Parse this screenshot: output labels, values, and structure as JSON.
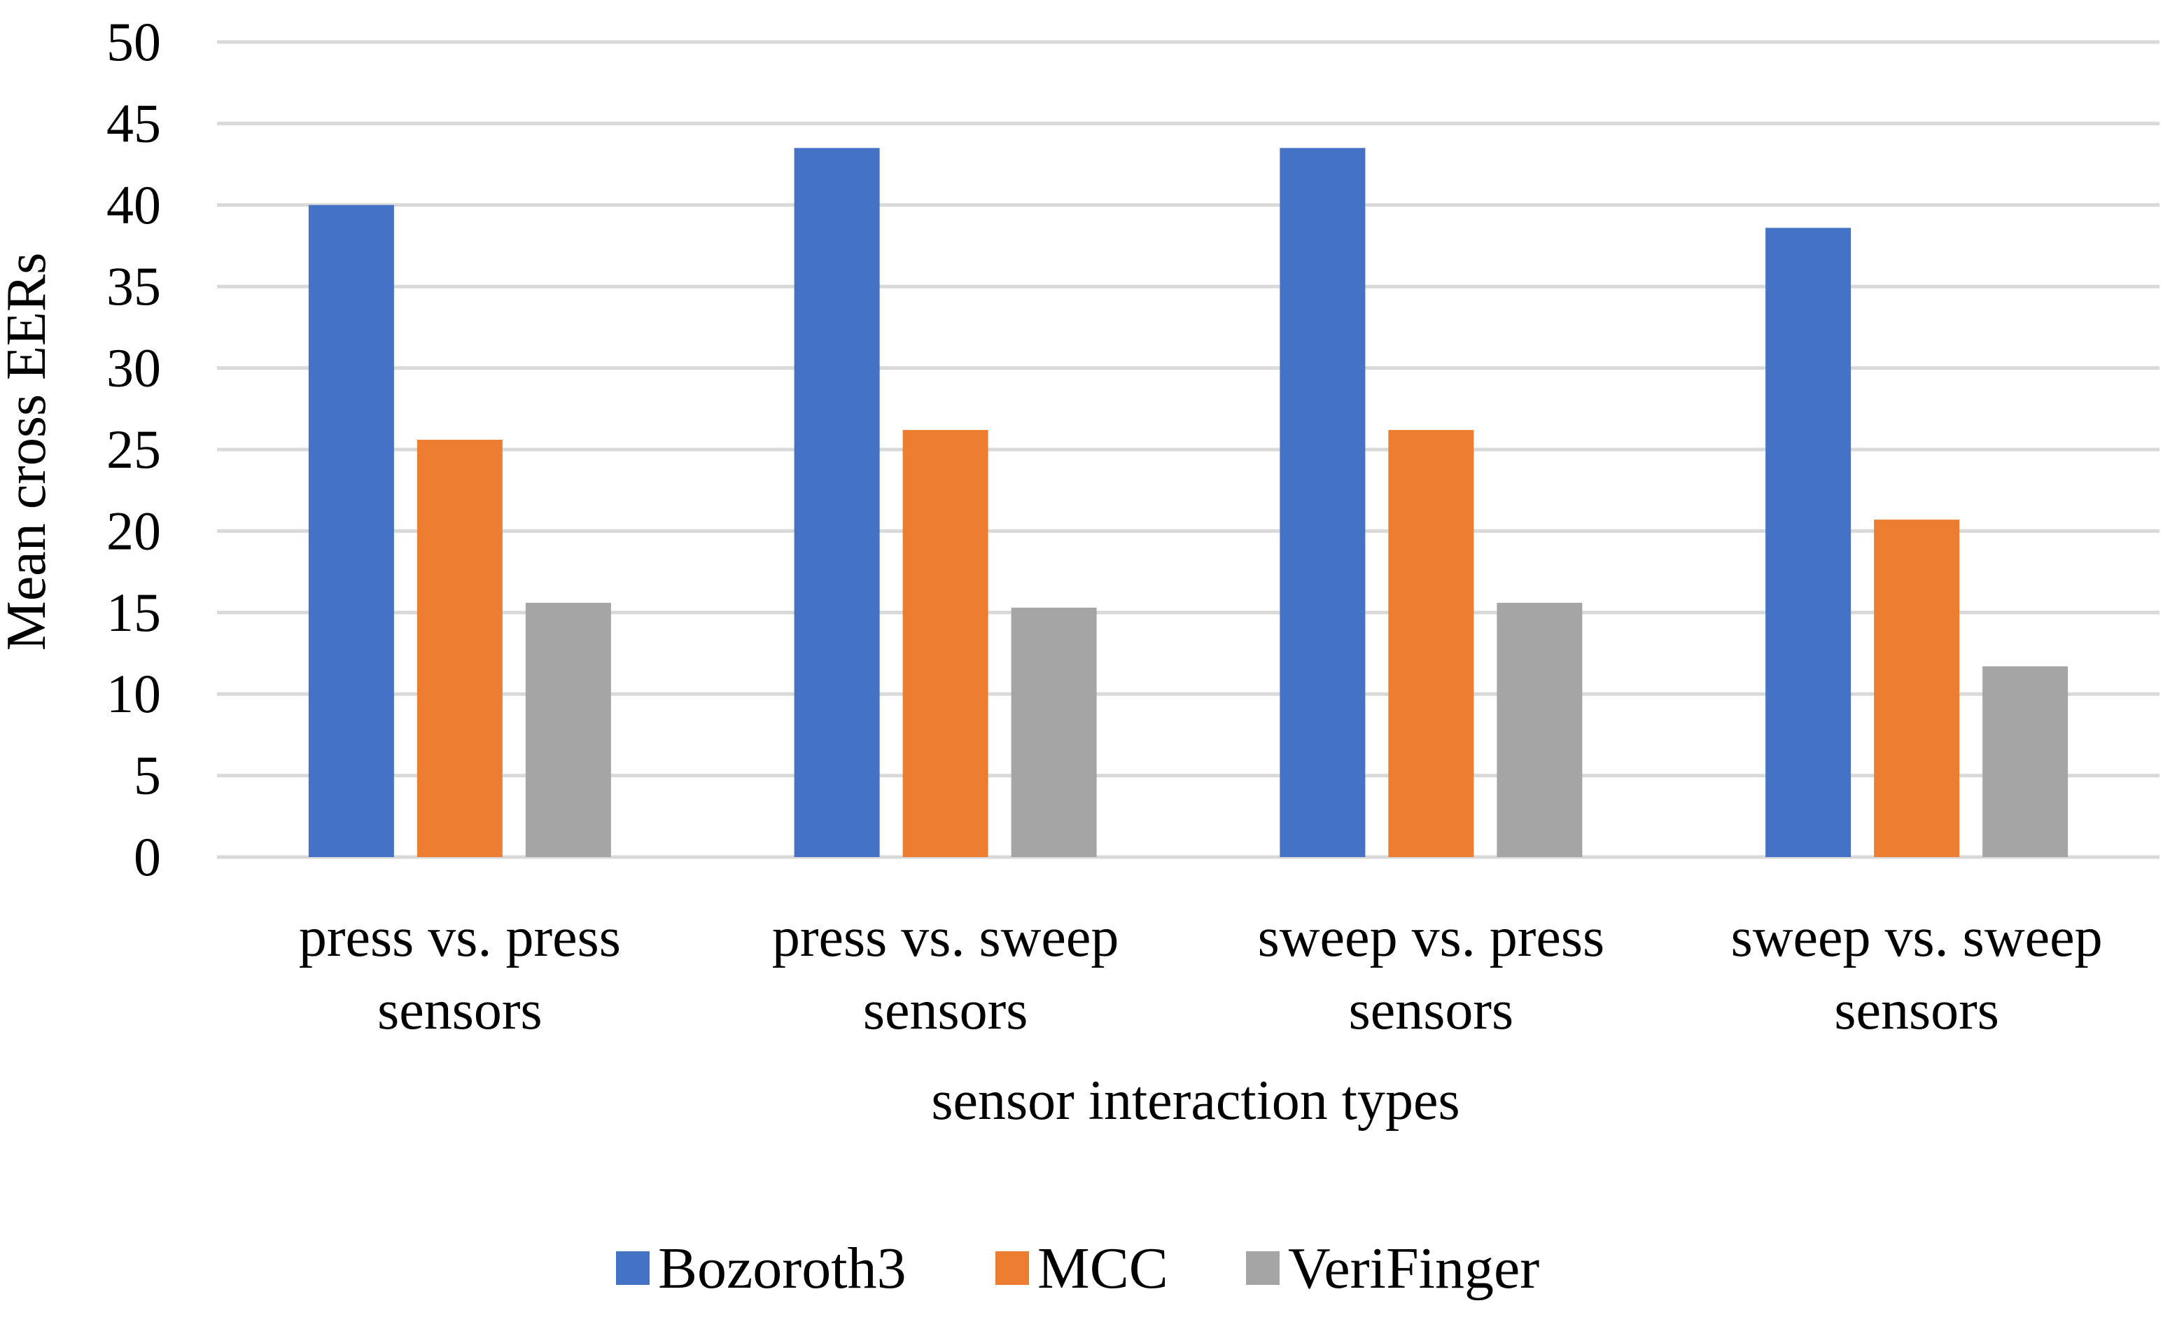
{
  "chart_data": {
    "type": "bar",
    "title": "",
    "xlabel": "sensor interaction types",
    "ylabel": "Mean cross EERs",
    "ylim": [
      0,
      50
    ],
    "yticks": [
      0,
      5,
      10,
      15,
      20,
      25,
      30,
      35,
      40,
      45,
      50
    ],
    "grid": true,
    "legend_position": "bottom",
    "categories": [
      [
        "press vs. press",
        "sensors"
      ],
      [
        "press vs. sweep",
        "sensors"
      ],
      [
        "sweep vs. press",
        "sensors"
      ],
      [
        "sweep vs. sweep",
        "sensors"
      ]
    ],
    "series": [
      {
        "name": "Bozoroth3",
        "color": "#4472C4",
        "values": [
          40.0,
          43.5,
          43.5,
          38.6
        ]
      },
      {
        "name": "MCC",
        "color": "#ED7D31",
        "values": [
          25.6,
          26.2,
          26.2,
          20.7
        ]
      },
      {
        "name": "VeriFinger",
        "color": "#A5A5A5",
        "values": [
          15.6,
          15.3,
          15.6,
          11.7
        ]
      }
    ]
  }
}
